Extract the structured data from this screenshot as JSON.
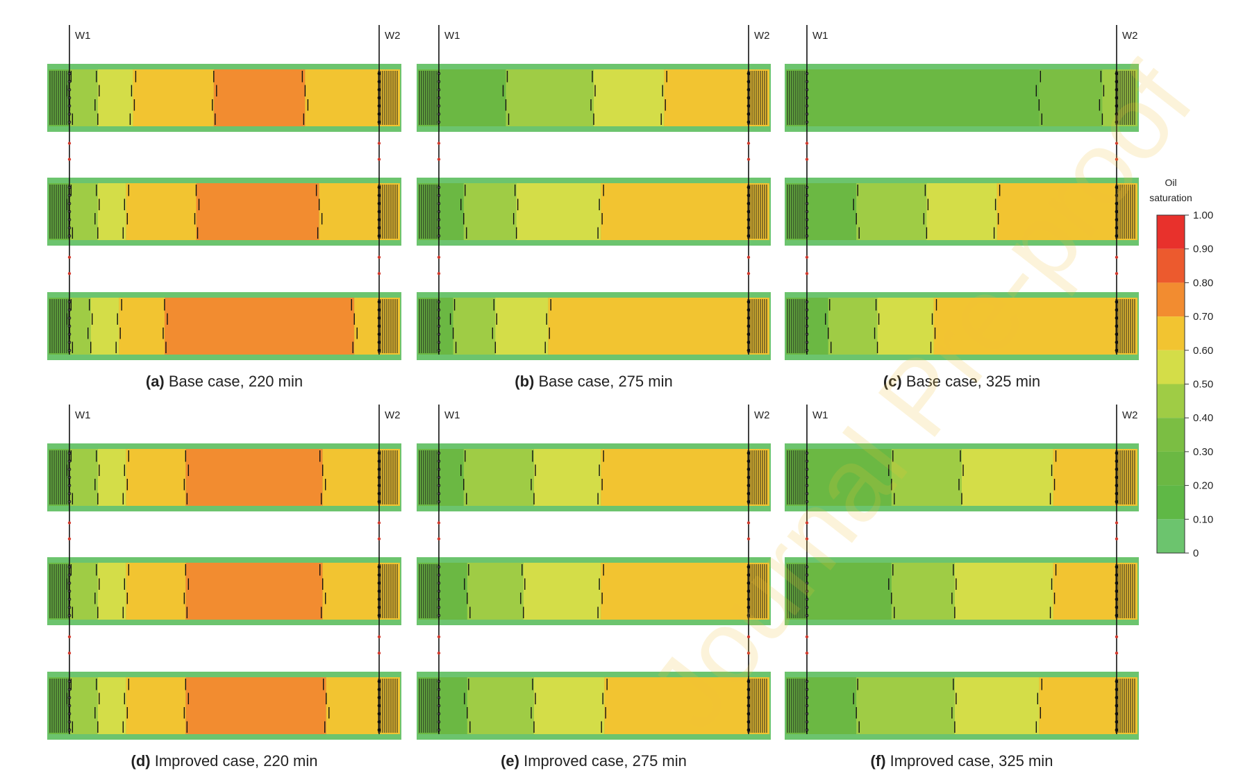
{
  "watermark": "Journal Pre-proof",
  "wells": {
    "left": "W1",
    "right": "W2"
  },
  "legend": {
    "title_line1": "Oil",
    "title_line2": "saturation",
    "ticks": [
      "1.00",
      "0.90",
      "0.80",
      "0.70",
      "0.60",
      "0.50",
      "0.40",
      "0.30",
      "0.20",
      "0.10",
      "0"
    ],
    "bins": [
      {
        "min": 0.9,
        "max": 1.0,
        "color": "#e8312c"
      },
      {
        "min": 0.8,
        "max": 0.9,
        "color": "#ec5a2e"
      },
      {
        "min": 0.7,
        "max": 0.8,
        "color": "#f28c30"
      },
      {
        "min": 0.6,
        "max": 0.7,
        "color": "#f2c431"
      },
      {
        "min": 0.5,
        "max": 0.6,
        "color": "#d4dd48"
      },
      {
        "min": 0.4,
        "max": 0.5,
        "color": "#9fcc45"
      },
      {
        "min": 0.3,
        "max": 0.4,
        "color": "#7bbe43"
      },
      {
        "min": 0.2,
        "max": 0.3,
        "color": "#6bb843"
      },
      {
        "min": 0.1,
        "max": 0.2,
        "color": "#5fb846"
      },
      {
        "min": 0.0,
        "max": 0.1,
        "color": "#6cc46e"
      }
    ]
  },
  "panels": [
    {
      "id": "a",
      "label": "(a)",
      "text": "Base case, 220 min",
      "layers": [
        [
          [
            0.02,
            "#6bb843"
          ],
          [
            0.06,
            "#9fcc45"
          ],
          [
            0.14,
            "#d4dd48"
          ],
          [
            0.24,
            "#f2c431"
          ],
          [
            0.47,
            "#f28c30"
          ],
          [
            0.73,
            "#f2c431"
          ],
          [
            0.96,
            "#f2c431"
          ]
        ],
        [
          [
            0.02,
            "#6bb843"
          ],
          [
            0.06,
            "#9fcc45"
          ],
          [
            0.14,
            "#d4dd48"
          ],
          [
            0.22,
            "#f2c431"
          ],
          [
            0.42,
            "#f28c30"
          ],
          [
            0.77,
            "#f2c431"
          ],
          [
            0.96,
            "#f2c431"
          ]
        ],
        [
          [
            0.02,
            "#6bb843"
          ],
          [
            0.06,
            "#9fcc45"
          ],
          [
            0.12,
            "#d4dd48"
          ],
          [
            0.2,
            "#f2c431"
          ],
          [
            0.33,
            "#f28c30"
          ],
          [
            0.87,
            "#f2c431"
          ],
          [
            0.96,
            "#f2c431"
          ]
        ]
      ]
    },
    {
      "id": "b",
      "label": "(b)",
      "text": "Base case, 275 min",
      "layers": [
        [
          [
            0.02,
            "#6bb843"
          ],
          [
            0.25,
            "#9fcc45"
          ],
          [
            0.5,
            "#d4dd48"
          ],
          [
            0.7,
            "#f2c431"
          ],
          [
            0.96,
            "#f2c431"
          ]
        ],
        [
          [
            0.02,
            "#6bb843"
          ],
          [
            0.13,
            "#9fcc45"
          ],
          [
            0.28,
            "#d4dd48"
          ],
          [
            0.52,
            "#f2c431"
          ],
          [
            0.96,
            "#f2c431"
          ]
        ],
        [
          [
            0.02,
            "#6bb843"
          ],
          [
            0.1,
            "#9fcc45"
          ],
          [
            0.22,
            "#d4dd48"
          ],
          [
            0.37,
            "#f2c431"
          ],
          [
            0.96,
            "#f2c431"
          ]
        ]
      ]
    },
    {
      "id": "c",
      "label": "(c)",
      "text": "Base case, 325 min",
      "layers": [
        [
          [
            0.02,
            "#6bb843"
          ],
          [
            0.72,
            "#7bbe43"
          ],
          [
            0.9,
            "#9fcc45"
          ],
          [
            0.96,
            "#9fcc45"
          ]
        ],
        [
          [
            0.02,
            "#6bb843"
          ],
          [
            0.2,
            "#9fcc45"
          ],
          [
            0.4,
            "#d4dd48"
          ],
          [
            0.6,
            "#f2c431"
          ],
          [
            0.96,
            "#f2c431"
          ]
        ],
        [
          [
            0.02,
            "#6bb843"
          ],
          [
            0.12,
            "#9fcc45"
          ],
          [
            0.26,
            "#d4dd48"
          ],
          [
            0.42,
            "#f2c431"
          ],
          [
            0.96,
            "#f2c431"
          ]
        ]
      ]
    },
    {
      "id": "d",
      "label": "(d)",
      "text": "Improved case, 220 min",
      "layers": [
        [
          [
            0.02,
            "#6bb843"
          ],
          [
            0.06,
            "#9fcc45"
          ],
          [
            0.14,
            "#d4dd48"
          ],
          [
            0.22,
            "#f2c431"
          ],
          [
            0.39,
            "#f28c30"
          ],
          [
            0.78,
            "#f2c431"
          ],
          [
            0.96,
            "#f2c431"
          ]
        ],
        [
          [
            0.02,
            "#6bb843"
          ],
          [
            0.06,
            "#9fcc45"
          ],
          [
            0.14,
            "#d4dd48"
          ],
          [
            0.22,
            "#f2c431"
          ],
          [
            0.39,
            "#f28c30"
          ],
          [
            0.78,
            "#f2c431"
          ],
          [
            0.96,
            "#f2c431"
          ]
        ],
        [
          [
            0.02,
            "#6bb843"
          ],
          [
            0.06,
            "#9fcc45"
          ],
          [
            0.14,
            "#d4dd48"
          ],
          [
            0.22,
            "#f2c431"
          ],
          [
            0.39,
            "#f28c30"
          ],
          [
            0.79,
            "#f2c431"
          ],
          [
            0.96,
            "#f2c431"
          ]
        ]
      ]
    },
    {
      "id": "e",
      "label": "(e)",
      "text": "Improved case, 275 min",
      "layers": [
        [
          [
            0.02,
            "#6bb843"
          ],
          [
            0.13,
            "#9fcc45"
          ],
          [
            0.33,
            "#d4dd48"
          ],
          [
            0.52,
            "#f2c431"
          ],
          [
            0.96,
            "#f2c431"
          ]
        ],
        [
          [
            0.02,
            "#6bb843"
          ],
          [
            0.14,
            "#9fcc45"
          ],
          [
            0.3,
            "#d4dd48"
          ],
          [
            0.52,
            "#f2c431"
          ],
          [
            0.96,
            "#f2c431"
          ]
        ],
        [
          [
            0.02,
            "#6bb843"
          ],
          [
            0.14,
            "#9fcc45"
          ],
          [
            0.33,
            "#d4dd48"
          ],
          [
            0.53,
            "#f2c431"
          ],
          [
            0.96,
            "#f2c431"
          ]
        ]
      ]
    },
    {
      "id": "f",
      "label": "(f)",
      "text": "Improved case, 325 min",
      "layers": [
        [
          [
            0.02,
            "#6bb843"
          ],
          [
            0.3,
            "#9fcc45"
          ],
          [
            0.5,
            "#d4dd48"
          ],
          [
            0.76,
            "#f2c431"
          ],
          [
            0.96,
            "#f2c431"
          ]
        ],
        [
          [
            0.02,
            "#6bb843"
          ],
          [
            0.3,
            "#9fcc45"
          ],
          [
            0.48,
            "#d4dd48"
          ],
          [
            0.76,
            "#f2c431"
          ],
          [
            0.96,
            "#f2c431"
          ]
        ],
        [
          [
            0.02,
            "#6bb843"
          ],
          [
            0.2,
            "#9fcc45"
          ],
          [
            0.48,
            "#d4dd48"
          ],
          [
            0.72,
            "#f2c431"
          ],
          [
            0.96,
            "#f2c431"
          ]
        ]
      ]
    }
  ]
}
